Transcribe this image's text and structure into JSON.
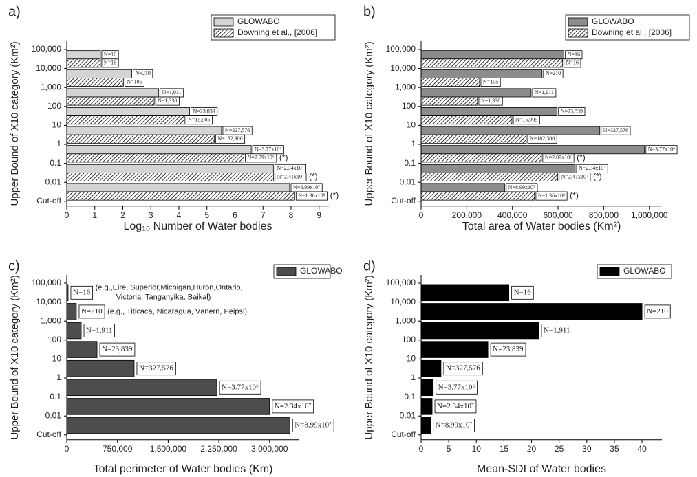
{
  "chart_data": [
    {
      "type": "bar",
      "panel_label": "a)",
      "xlabel": "Log₁₀ Number of Water bodies",
      "ylabel": "Upper Bound of X10 category (Km²)",
      "y_labels": [
        "100,000",
        "10,000",
        "1,000",
        "100",
        "10",
        "1",
        "0.1",
        "0.01",
        "Cut-off"
      ],
      "xlim": [
        0,
        9.35
      ],
      "xticks": [
        0,
        1,
        2,
        3,
        4,
        5,
        6,
        7,
        8,
        9
      ],
      "legend": "top right",
      "series": [
        {
          "name": "GLOWABO",
          "color": "#d4d4d4",
          "values": [
            1.2,
            2.32,
            3.28,
            4.38,
            5.52,
            6.58,
            7.37,
            7.95
          ],
          "value_labels": [
            "N=16",
            "N=210",
            "N=1,911",
            "N=23,839",
            "N=327,576",
            "N=3.77x10⁶",
            "N=2.34x10⁷",
            "N=8.99x10⁷"
          ]
        },
        {
          "name": "Downing et al., [2006]",
          "color": "hatch",
          "values": [
            1.2,
            2.02,
            3.12,
            4.2,
            5.26,
            6.32,
            7.38,
            8.13
          ],
          "value_labels": [
            "N=16",
            "N=105",
            "N=1,330",
            "N=15,905",
            "N=182,300",
            "N=2.09x10⁶",
            "N=2.41x10⁷",
            "N=1.36x10⁸"
          ],
          "notes": [
            null,
            null,
            null,
            null,
            null,
            [
              "(*)"
            ],
            [
              "(*)"
            ],
            [
              "(*)"
            ]
          ]
        }
      ]
    },
    {
      "type": "bar",
      "panel_label": "b)",
      "xlabel": "Total area of Water bodies (Km²)",
      "ylabel": "Upper Bound of X10 category (Km²)",
      "y_labels": [
        "100,000",
        "10,000",
        "1,000",
        "100",
        "10",
        "1",
        "0.1",
        "0.01",
        "Cut-off"
      ],
      "xlim": [
        0,
        1055000
      ],
      "xticks": [
        0,
        {
          "value": 200000,
          "label": "200,000"
        },
        {
          "value": 400000,
          "label": "400,000"
        },
        {
          "value": 600000,
          "label": "600,000"
        },
        {
          "value": 800000,
          "label": "800,000"
        },
        {
          "value": 1000000,
          "label": "1,000,000"
        }
      ],
      "legend": "top right",
      "series": [
        {
          "name": "GLOWABO",
          "color": "#8c8c8c",
          "values": [
            626000,
            530000,
            482000,
            596000,
            783000,
            979000,
            675000,
            367000
          ],
          "value_labels": [
            "N=16",
            "N=210",
            "N=1,911",
            "N=23,839",
            "N=327,576",
            "N=3.77x10⁶",
            "N=2.34x10⁷",
            "N=8.99x10⁷"
          ]
        },
        {
          "name": "Downing et al., [2006]",
          "color": "hatch",
          "values": [
            620000,
            256000,
            247000,
            398000,
            461000,
            527000,
            599000,
            497000
          ],
          "value_labels": [
            "N=16",
            "N=105",
            "N=1,330",
            "N=15,905",
            "N=182,300",
            "N=2.09x10⁶",
            "N=2.41x10⁷",
            "N=1.36x10⁸"
          ],
          "notes": [
            null,
            null,
            null,
            null,
            null,
            [
              "(*)"
            ],
            [
              "(*)"
            ],
            [
              "(*)"
            ]
          ]
        }
      ]
    },
    {
      "type": "bar",
      "panel_label": "c)",
      "xlabel": "Total perimeter of Water bodies (Km)",
      "ylabel": "Upper Bound of X10 category (Km²)",
      "y_labels": [
        "100,000",
        "10,000",
        "1,000",
        "100",
        "10",
        "1",
        "0.1",
        "0.01",
        "Cut-off"
      ],
      "xlim": [
        0,
        3440000
      ],
      "xticks": [
        0,
        {
          "value": 750000,
          "label": "750,000"
        },
        {
          "value": 1500000,
          "label": "1,500,000"
        },
        {
          "value": 2250000,
          "label": "2,250,000"
        },
        {
          "value": 3000000,
          "label": "3,000,000"
        }
      ],
      "legend": "top right",
      "series": [
        {
          "name": "GLOWABO",
          "color": "#4d4d4d",
          "values": [
            20000,
            142000,
            214000,
            448000,
            997000,
            2220000,
            3000000,
            3300000
          ],
          "value_labels": [
            "N=16",
            "N=210",
            "N=1,911",
            "N=23,839",
            "N=327,576",
            "N=3.77x10⁶",
            "N=2.34x10⁷",
            "N=8.99x10⁷"
          ],
          "notes": [
            [
              "(e.g.,Eire, Superior,Michigan,Huron,Ontario,",
              "Victoria, Tanganyika, Baikal)"
            ],
            [
              "(e.g., Titicaca, Nicaragua, Vänern, Peipsi)"
            ],
            null,
            null,
            null,
            null,
            null,
            null
          ]
        }
      ]
    },
    {
      "type": "bar",
      "panel_label": "d)",
      "xlabel": "Mean-SDI of Water bodies",
      "ylabel": "Upper Bound of X10 category (Km²)",
      "y_labels": [
        "100,000",
        "10,000",
        "1,000",
        "100",
        "10",
        "1",
        "0.1",
        "0.01",
        "Cut-off"
      ],
      "xlim": [
        0,
        43.6
      ],
      "xticks": [
        0,
        5,
        10,
        15,
        20,
        25,
        30,
        35,
        40
      ],
      "legend": "top right",
      "series": [
        {
          "name": "GLOWABO",
          "color": "#000000",
          "values": [
            15.9,
            40,
            21.3,
            12.1,
            3.6,
            2.2,
            2.0,
            1.7
          ],
          "value_labels": [
            "N=16",
            "N=210",
            "N=1,911",
            "N=23,839",
            "N=327,576",
            "N=3.77x10⁶",
            "N=2.34x10⁷",
            "N=8.99x10⁷"
          ]
        }
      ]
    }
  ]
}
